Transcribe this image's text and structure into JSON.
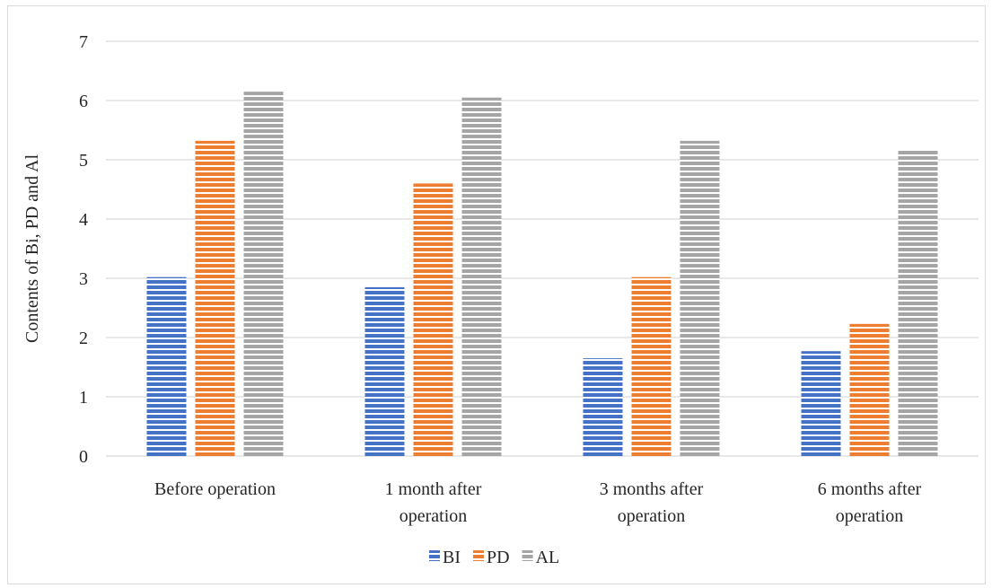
{
  "chart_data": {
    "type": "bar",
    "categories": [
      [
        "Before operation"
      ],
      [
        "1 month after",
        "operation"
      ],
      [
        "3 months after",
        "operation"
      ],
      [
        "6 months after",
        "operation"
      ]
    ],
    "series": [
      {
        "name": "BI",
        "values": [
          3.02,
          2.85,
          1.65,
          1.77
        ],
        "color": "#4472c4"
      },
      {
        "name": "PD",
        "values": [
          5.32,
          4.6,
          3.02,
          2.23
        ],
        "color": "#ed7d31"
      },
      {
        "name": "AL",
        "values": [
          6.15,
          6.05,
          5.32,
          5.18
        ],
        "color": "#a5a5a5"
      }
    ],
    "ylabel": "Contents of Bi, PD and Al",
    "xlabel": "",
    "ylim": [
      0,
      7
    ],
    "yticks": [
      0,
      1,
      2,
      3,
      4,
      5,
      6,
      7
    ],
    "grid": true,
    "legend_position": "bottom",
    "bar_pattern": "horizontal-stripes"
  }
}
